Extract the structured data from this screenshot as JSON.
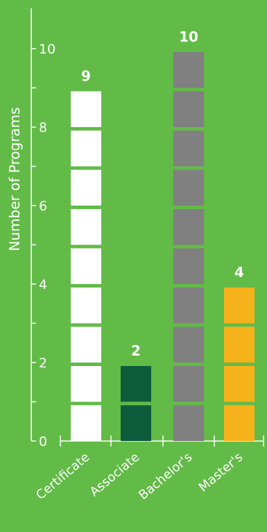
{
  "chart_data": {
    "type": "bar",
    "categories": [
      "Certificate",
      "Associate",
      "Bachelor's",
      "Master's"
    ],
    "values": [
      9,
      2,
      10,
      4
    ],
    "colors": [
      "#ffffff",
      "#0d5c3c",
      "#808080",
      "#f6b21b"
    ],
    "value_labels": [
      "9",
      "2",
      "10",
      "4"
    ],
    "title": "",
    "xlabel": "",
    "ylabel": "Number of Programs",
    "ylim": [
      0,
      10
    ],
    "yticks": [
      0,
      2,
      4,
      6,
      8,
      10
    ],
    "ytick_labels": [
      "0",
      "2",
      "4",
      "6",
      "8",
      "10"
    ],
    "grid": false,
    "legend": "none",
    "background": "#62bb47",
    "axis_color": "#ffffff",
    "note": "Each bar is drawn as a stack of unit blocks"
  }
}
